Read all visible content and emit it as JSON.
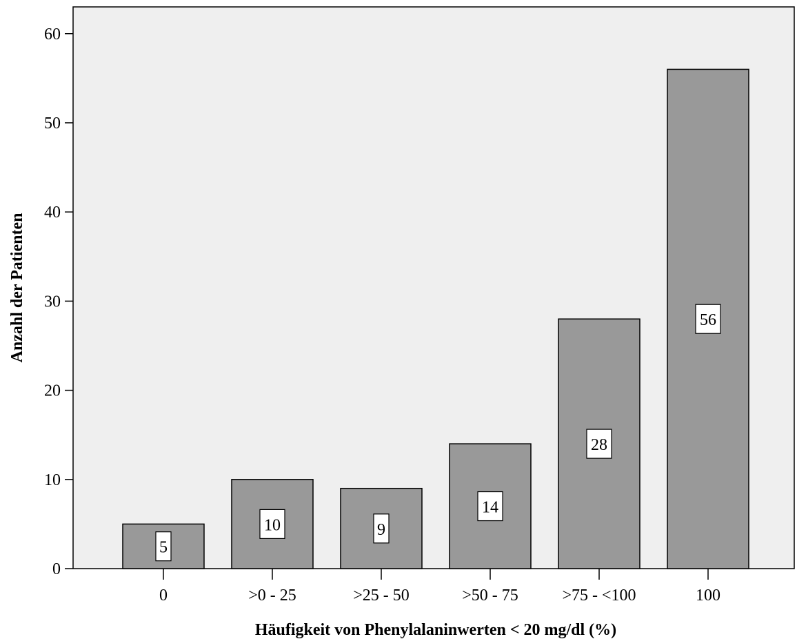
{
  "chart_data": {
    "type": "bar",
    "categories": [
      "0",
      ">0 - 25",
      ">25 - 50",
      ">50 - 75",
      ">75 - <100",
      "100"
    ],
    "values": [
      5,
      10,
      9,
      14,
      28,
      56
    ],
    "title": "",
    "xlabel": "Häufigkeit von Phenylalaninwerten < 20 mg/dl (%)",
    "ylabel": "Anzahl der Patienten",
    "ylim": [
      0,
      63
    ],
    "yticks": [
      0,
      10,
      20,
      30,
      40,
      50,
      60
    ],
    "grid": false,
    "legend": "none",
    "colors": {
      "plot_background": "#efefef",
      "bar_fill": "#999999",
      "bar_stroke": "#000000",
      "label_box": "#ffffff"
    }
  }
}
